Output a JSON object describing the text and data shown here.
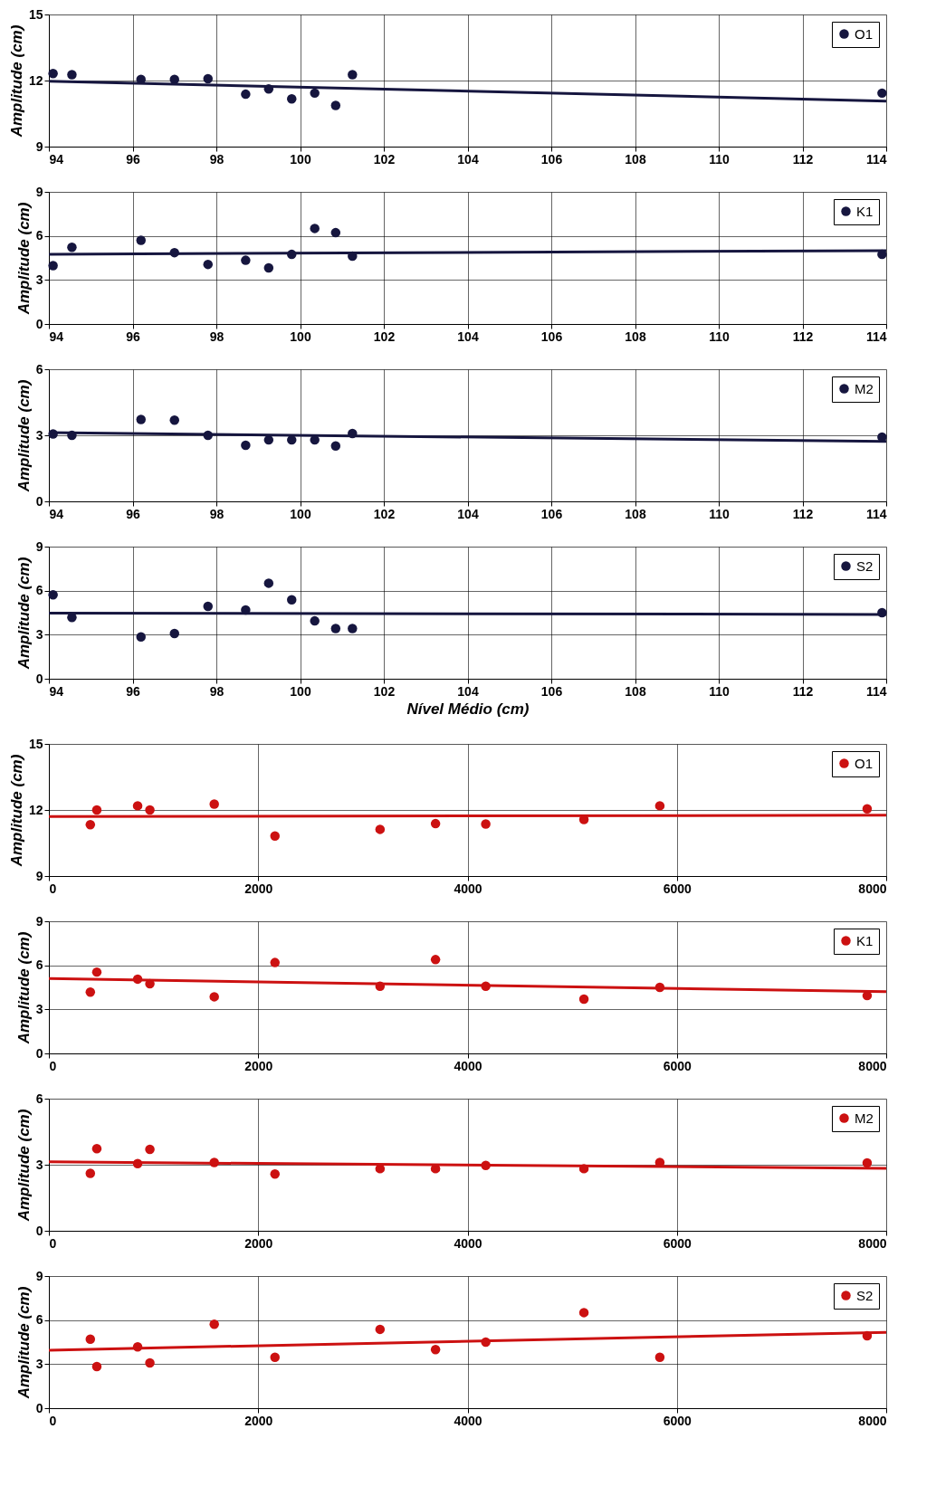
{
  "chart_data": [
    {
      "type": "scatter",
      "ylabel": "Amplitude (cm)",
      "xlim": [
        94,
        114
      ],
      "xticks": [
        94,
        96,
        98,
        100,
        102,
        104,
        106,
        108,
        110,
        112,
        114
      ],
      "ylim": [
        9,
        15
      ],
      "yticks": [
        9,
        12,
        15
      ],
      "grid": true,
      "legend": "top right",
      "marker": "circle",
      "x": [
        94.1,
        94.55,
        96.2,
        97.0,
        97.8,
        98.7,
        99.25,
        99.8,
        100.35,
        100.85,
        101.25,
        113.9
      ],
      "series": [
        {
          "name": "O1",
          "color": "#16163f",
          "values": [
            12.32,
            12.27,
            12.05,
            12.05,
            12.08,
            11.38,
            11.62,
            11.17,
            11.43,
            10.87,
            12.27,
            11.43
          ]
        },
        {
          "type": "line",
          "marker": "none",
          "color": "#16163f",
          "x": [
            94,
            114
          ],
          "values": [
            11.97,
            11.07
          ]
        }
      ]
    },
    {
      "type": "scatter",
      "ylabel": "Amplitude (cm)",
      "xlim": [
        94,
        114
      ],
      "xticks": [
        94,
        96,
        98,
        100,
        102,
        104,
        106,
        108,
        110,
        112,
        114
      ],
      "ylim": [
        0,
        9
      ],
      "yticks": [
        0,
        3,
        6,
        9
      ],
      "grid": true,
      "legend": "top right",
      "marker": "circle",
      "x": [
        94.1,
        94.55,
        96.2,
        97.0,
        97.8,
        98.7,
        99.25,
        99.8,
        100.35,
        100.85,
        101.25,
        113.9
      ],
      "series": [
        {
          "name": "K1",
          "color": "#16163f",
          "values": [
            3.98,
            5.22,
            5.7,
            4.86,
            4.06,
            4.34,
            3.82,
            4.74,
            6.51,
            6.22,
            4.62,
            4.74
          ]
        },
        {
          "type": "line",
          "marker": "none",
          "color": "#16163f",
          "x": [
            94,
            114
          ],
          "values": [
            4.75,
            5.0
          ]
        }
      ]
    },
    {
      "type": "scatter",
      "ylabel": "Amplitude (cm)",
      "xlim": [
        94,
        114
      ],
      "xticks": [
        94,
        96,
        98,
        100,
        102,
        104,
        106,
        108,
        110,
        112,
        114
      ],
      "ylim": [
        0,
        6
      ],
      "yticks": [
        0,
        3,
        6
      ],
      "grid": true,
      "legend": "top right",
      "marker": "circle",
      "x": [
        94.1,
        94.55,
        96.2,
        97.0,
        97.8,
        98.7,
        99.25,
        99.8,
        100.35,
        100.85,
        101.25,
        113.9
      ],
      "series": [
        {
          "name": "M2",
          "color": "#16163f",
          "values": [
            3.06,
            3.0,
            3.72,
            3.69,
            3.0,
            2.55,
            2.79,
            2.79,
            2.79,
            2.52,
            3.08,
            2.92
          ]
        },
        {
          "type": "line",
          "marker": "none",
          "color": "#16163f",
          "x": [
            94,
            114
          ],
          "values": [
            3.12,
            2.72
          ]
        }
      ]
    },
    {
      "type": "scatter",
      "ylabel": "Amplitude (cm)",
      "xlabel": "Nível Médio (cm)",
      "xlim": [
        94,
        114
      ],
      "xticks": [
        94,
        96,
        98,
        100,
        102,
        104,
        106,
        108,
        110,
        112,
        114
      ],
      "ylim": [
        0,
        9
      ],
      "yticks": [
        0,
        3,
        6,
        9
      ],
      "grid": true,
      "legend": "top right",
      "marker": "circle",
      "x": [
        94.1,
        94.55,
        96.2,
        97.0,
        97.8,
        98.7,
        99.25,
        99.8,
        100.35,
        100.85,
        101.25,
        113.9
      ],
      "series": [
        {
          "name": "S2",
          "color": "#16163f",
          "values": [
            5.72,
            4.18,
            2.85,
            3.08,
            4.93,
            4.69,
            6.51,
            5.38,
            3.94,
            3.42,
            3.42,
            4.5
          ]
        },
        {
          "type": "line",
          "marker": "none",
          "color": "#16163f",
          "x": [
            94,
            114
          ],
          "values": [
            4.47,
            4.38
          ]
        }
      ]
    },
    {
      "type": "scatter",
      "ylabel": "Amplitude (cm)",
      "xlim": [
        0,
        8000
      ],
      "xticks": [
        0,
        2000,
        4000,
        6000,
        8000
      ],
      "ylim": [
        9,
        15
      ],
      "yticks": [
        9,
        12,
        15
      ],
      "grid": true,
      "legend": "top right",
      "marker": "circle",
      "x": [
        396,
        458,
        848,
        965,
        1580,
        2160,
        3164,
        3694,
        4174,
        5112,
        5837,
        7818
      ],
      "series": [
        {
          "name": "O1",
          "color": "#cc1111",
          "values": [
            11.33,
            12.0,
            12.19,
            12.0,
            12.27,
            10.82,
            11.12,
            11.38,
            11.36,
            11.57,
            12.19,
            12.05
          ]
        },
        {
          "type": "line",
          "marker": "none",
          "color": "#cc1111",
          "x": [
            0,
            8000
          ],
          "values": [
            11.7,
            11.76
          ]
        }
      ]
    },
    {
      "type": "scatter",
      "ylabel": "Amplitude (cm)",
      "xlim": [
        0,
        8000
      ],
      "xticks": [
        0,
        2000,
        4000,
        6000,
        8000
      ],
      "ylim": [
        0,
        9
      ],
      "yticks": [
        0,
        3,
        6,
        9
      ],
      "grid": true,
      "legend": "top right",
      "marker": "circle",
      "x": [
        396,
        458,
        848,
        965,
        1580,
        2160,
        3164,
        3694,
        4174,
        5112,
        5837,
        7818
      ],
      "series": [
        {
          "name": "K1",
          "color": "#cc1111",
          "values": [
            4.18,
            5.54,
            5.06,
            4.74,
            3.86,
            6.19,
            4.58,
            6.39,
            4.58,
            3.7,
            4.5,
            3.94
          ]
        },
        {
          "type": "line",
          "marker": "none",
          "color": "#cc1111",
          "x": [
            0,
            8000
          ],
          "values": [
            5.1,
            4.2
          ]
        }
      ]
    },
    {
      "type": "scatter",
      "ylabel": "Amplitude (cm)",
      "xlim": [
        0,
        8000
      ],
      "xticks": [
        0,
        2000,
        4000,
        6000,
        8000
      ],
      "ylim": [
        0,
        6
      ],
      "yticks": [
        0,
        3,
        6
      ],
      "grid": true,
      "legend": "top right",
      "marker": "circle",
      "x": [
        396,
        458,
        848,
        965,
        1580,
        2160,
        3164,
        3694,
        4174,
        5112,
        5837,
        7818
      ],
      "series": [
        {
          "name": "M2",
          "color": "#cc1111",
          "values": [
            2.61,
            3.73,
            3.05,
            3.7,
            3.1,
            2.58,
            2.82,
            2.82,
            2.97,
            2.82,
            3.1,
            3.08
          ]
        },
        {
          "type": "line",
          "marker": "none",
          "color": "#cc1111",
          "x": [
            0,
            8000
          ],
          "values": [
            3.13,
            2.84
          ]
        }
      ]
    },
    {
      "type": "scatter",
      "ylabel": "Amplitude (cm)",
      "xlim": [
        0,
        8000
      ],
      "xticks": [
        0,
        2000,
        4000,
        6000,
        8000
      ],
      "ylim": [
        0,
        9
      ],
      "yticks": [
        0,
        3,
        6,
        9
      ],
      "grid": true,
      "legend": "top right",
      "marker": "circle",
      "x": [
        396,
        458,
        848,
        965,
        1580,
        2160,
        3164,
        3694,
        4174,
        5112,
        5837,
        7818
      ],
      "series": [
        {
          "name": "S2",
          "color": "#cc1111",
          "values": [
            4.7,
            2.84,
            4.18,
            3.08,
            5.72,
            3.47,
            5.37,
            3.99,
            4.5,
            6.51,
            3.47,
            4.93
          ]
        },
        {
          "type": "line",
          "marker": "none",
          "color": "#cc1111",
          "x": [
            0,
            8000
          ],
          "values": [
            3.95,
            5.17
          ]
        }
      ]
    }
  ]
}
